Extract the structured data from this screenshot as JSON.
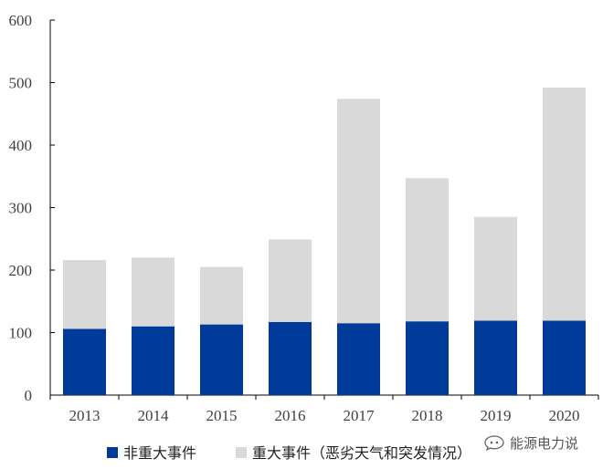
{
  "chart_data": {
    "type": "bar",
    "stacked": true,
    "categories": [
      "2013",
      "2014",
      "2015",
      "2016",
      "2017",
      "2018",
      "2019",
      "2020"
    ],
    "series": [
      {
        "name": "非重大事件",
        "color": "#003B9A",
        "values": [
          106,
          110,
          113,
          117,
          115,
          118,
          119,
          119
        ]
      },
      {
        "name": "重大事件（恶劣天气和突发情况）",
        "color": "#D9D9D9",
        "values": [
          110,
          110,
          92,
          132,
          359,
          229,
          166,
          373
        ]
      }
    ],
    "ylim": [
      0,
      600
    ],
    "yticks": [
      0,
      100,
      200,
      300,
      400,
      500,
      600
    ],
    "legend_position": "bottom",
    "grid": false
  },
  "watermark": {
    "text": "能源电力说",
    "icon": "wechat-official-account-icon"
  }
}
